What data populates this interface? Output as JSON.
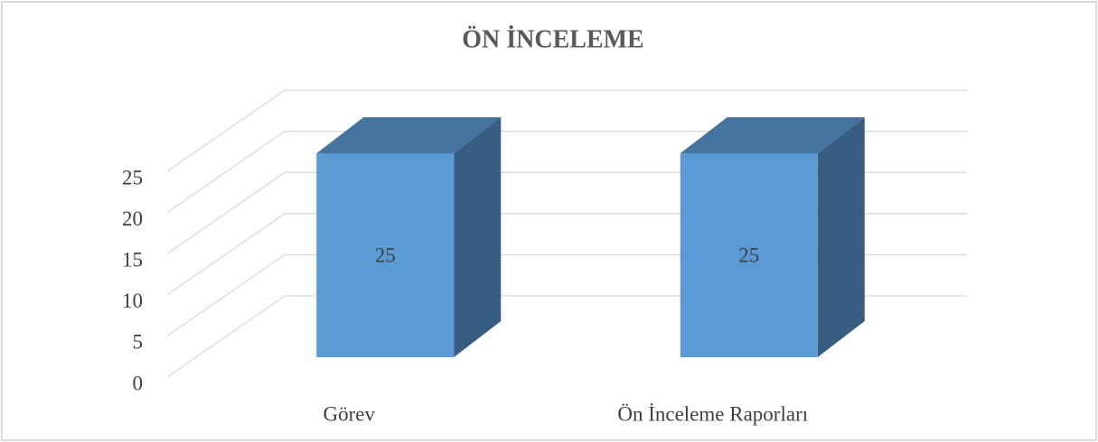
{
  "chart_data": {
    "type": "bar3d",
    "title": "ÖN İNCELEME",
    "categories": [
      "Görev",
      "Ön İnceleme Raporları"
    ],
    "values": [
      25,
      25
    ],
    "color": "#5b9bd5",
    "ylim": [
      0,
      25
    ],
    "yticks": [
      0,
      5,
      10,
      15,
      20,
      25
    ],
    "grid": true,
    "data_labels": true
  }
}
